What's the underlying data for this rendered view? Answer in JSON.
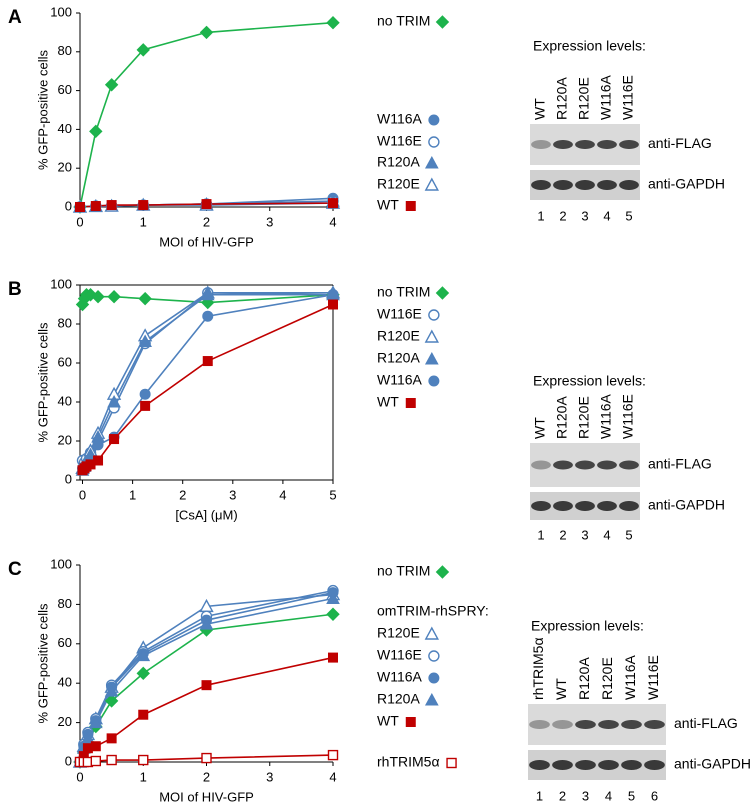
{
  "chart_data": [
    {
      "type": "line",
      "panel": "A",
      "xlabel": "MOI of HIV-GFP",
      "ylabel": "% GFP-positive cells",
      "x": [
        0,
        0.25,
        0.5,
        1,
        2,
        4
      ],
      "xlim": [
        0,
        4
      ],
      "xticks": [
        0,
        1,
        2,
        3,
        4
      ],
      "ylim": [
        0,
        100
      ],
      "yticks": [
        0,
        20,
        40,
        60,
        80,
        100
      ],
      "frame": false,
      "series": [
        {
          "name": "no TRIM",
          "color": "#1db34c",
          "marker": "diamond",
          "values": [
            0,
            39,
            63,
            81,
            90,
            95
          ]
        },
        {
          "name": "W116A",
          "color": "#4f81bd",
          "marker": "circle",
          "values": [
            0,
            0.5,
            0.7,
            1,
            1.5,
            4.5
          ]
        },
        {
          "name": "W116E",
          "color": "#4f81bd",
          "marker": "circle-open",
          "values": [
            0,
            0.5,
            0.6,
            1,
            1.5,
            3
          ]
        },
        {
          "name": "R120A",
          "color": "#4f81bd",
          "marker": "triangle",
          "values": [
            0,
            0.5,
            0.5,
            1,
            1.5,
            3
          ]
        },
        {
          "name": "R120E",
          "color": "#4f81bd",
          "marker": "triangle-open",
          "values": [
            0,
            0.3,
            0.5,
            1,
            1,
            2
          ]
        },
        {
          "name": "WT",
          "color": "#c00000",
          "marker": "square",
          "values": [
            0,
            0.5,
            1,
            1,
            1.5,
            2
          ]
        }
      ]
    },
    {
      "type": "line",
      "panel": "B",
      "xlabel": "[CsA] (μM)",
      "ylabel": "% GFP-positive cells",
      "x": [
        0,
        0.04,
        0.08,
        0.16,
        0.31,
        0.63,
        1.25,
        2.5,
        5
      ],
      "xlim": [
        -0.05,
        5
      ],
      "xticks": [
        0,
        1,
        2,
        3,
        4,
        5
      ],
      "ylim": [
        0,
        100
      ],
      "yticks": [
        0,
        20,
        40,
        60,
        80,
        100
      ],
      "frame": true,
      "series": [
        {
          "name": "no TRIM",
          "color": "#1db34c",
          "marker": "diamond",
          "values": [
            90,
            93,
            95,
            95,
            94,
            94,
            93,
            91,
            95
          ]
        },
        {
          "name": "W116E",
          "color": "#4f81bd",
          "marker": "circle-open",
          "values": [
            10,
            9,
            11,
            14,
            20,
            37,
            70,
            96,
            95
          ]
        },
        {
          "name": "R120E",
          "color": "#4f81bd",
          "marker": "triangle-open",
          "values": [
            6,
            8,
            10,
            15,
            24,
            44,
            74,
            96,
            96
          ]
        },
        {
          "name": "R120A",
          "color": "#4f81bd",
          "marker": "triangle",
          "values": [
            5,
            7,
            9,
            13,
            22,
            40,
            71,
            95,
            95
          ]
        },
        {
          "name": "W116A",
          "color": "#4f81bd",
          "marker": "circle",
          "values": [
            6,
            7,
            8,
            10,
            18,
            22,
            44,
            84,
            95
          ]
        },
        {
          "name": "WT",
          "color": "#c00000",
          "marker": "square",
          "values": [
            5,
            6,
            7,
            8,
            10,
            21,
            38,
            61,
            90
          ]
        }
      ]
    },
    {
      "type": "line",
      "panel": "C",
      "xlabel": "MOI of HIV-GFP",
      "ylabel": "% GFP-positive cells",
      "legend_title": "omTRIM-rhSPRY:",
      "x": [
        0,
        0.06,
        0.125,
        0.25,
        0.5,
        1,
        2,
        4
      ],
      "xlim": [
        0,
        4
      ],
      "xticks": [
        0,
        1,
        2,
        3,
        4
      ],
      "ylim": [
        0,
        100
      ],
      "yticks": [
        0,
        20,
        40,
        60,
        80,
        100
      ],
      "frame": false,
      "series": [
        {
          "name": "no TRIM",
          "color": "#1db34c",
          "marker": "diamond",
          "values": [
            0,
            5,
            10,
            18,
            31,
            45,
            67,
            75
          ]
        },
        {
          "name": "R120E",
          "color": "#4f81bd",
          "marker": "triangle-open",
          "values": [
            0,
            8,
            14,
            22,
            38,
            58,
            79,
            85
          ]
        },
        {
          "name": "W116E",
          "color": "#4f81bd",
          "marker": "circle-open",
          "values": [
            0,
            9,
            15,
            22,
            39,
            56,
            74,
            87
          ]
        },
        {
          "name": "W116A",
          "color": "#4f81bd",
          "marker": "circle",
          "values": [
            0,
            8,
            14,
            21,
            38,
            55,
            72,
            86
          ]
        },
        {
          "name": "R120A",
          "color": "#4f81bd",
          "marker": "triangle",
          "values": [
            0,
            7,
            12,
            20,
            36,
            54,
            70,
            83
          ]
        },
        {
          "name": "WT",
          "color": "#c00000",
          "marker": "square",
          "values": [
            0,
            3,
            7,
            8,
            12,
            24,
            39,
            53
          ]
        },
        {
          "name": "rhTRIM5α",
          "color": "#c00000",
          "marker": "square-open",
          "values": [
            0,
            0,
            0,
            0.5,
            1,
            1,
            2,
            3.5
          ]
        }
      ]
    }
  ],
  "blots": [
    {
      "title": "Expression levels:",
      "rows": [
        "anti-FLAG",
        "anti-GAPDH"
      ],
      "lane_numbers": [
        1,
        2,
        3,
        4,
        5
      ],
      "lanes": [
        {
          "label": "WT",
          "color": "#c00000"
        },
        {
          "label": "R120A",
          "color": "#4f81bd"
        },
        {
          "label": "R120E",
          "color": "#4f81bd"
        },
        {
          "label": "W116A",
          "color": "#4f81bd"
        },
        {
          "label": "W116E",
          "color": "#4f81bd"
        }
      ]
    },
    {
      "title": "Expression levels:",
      "rows": [
        "anti-FLAG",
        "anti-GAPDH"
      ],
      "lane_numbers": [
        1,
        2,
        3,
        4,
        5
      ],
      "lanes": [
        {
          "label": "WT",
          "color": "#c00000"
        },
        {
          "label": "R120A",
          "color": "#4f81bd"
        },
        {
          "label": "R120E",
          "color": "#4f81bd"
        },
        {
          "label": "W116A",
          "color": "#4f81bd"
        },
        {
          "label": "W116E",
          "color": "#4f81bd"
        }
      ]
    },
    {
      "title": "Expression levels:",
      "rows": [
        "anti-FLAG",
        "anti-GAPDH"
      ],
      "lane_numbers": [
        1,
        2,
        3,
        4,
        5,
        6
      ],
      "lanes": [
        {
          "label": "rhTRIM5α",
          "color": "#c00000"
        },
        {
          "label": "WT",
          "color": "#c00000"
        },
        {
          "label": "R120A",
          "color": "#4f81bd"
        },
        {
          "label": "R120E",
          "color": "#4f81bd"
        },
        {
          "label": "W116A",
          "color": "#4f81bd"
        },
        {
          "label": "W116E",
          "color": "#4f81bd"
        }
      ]
    }
  ]
}
